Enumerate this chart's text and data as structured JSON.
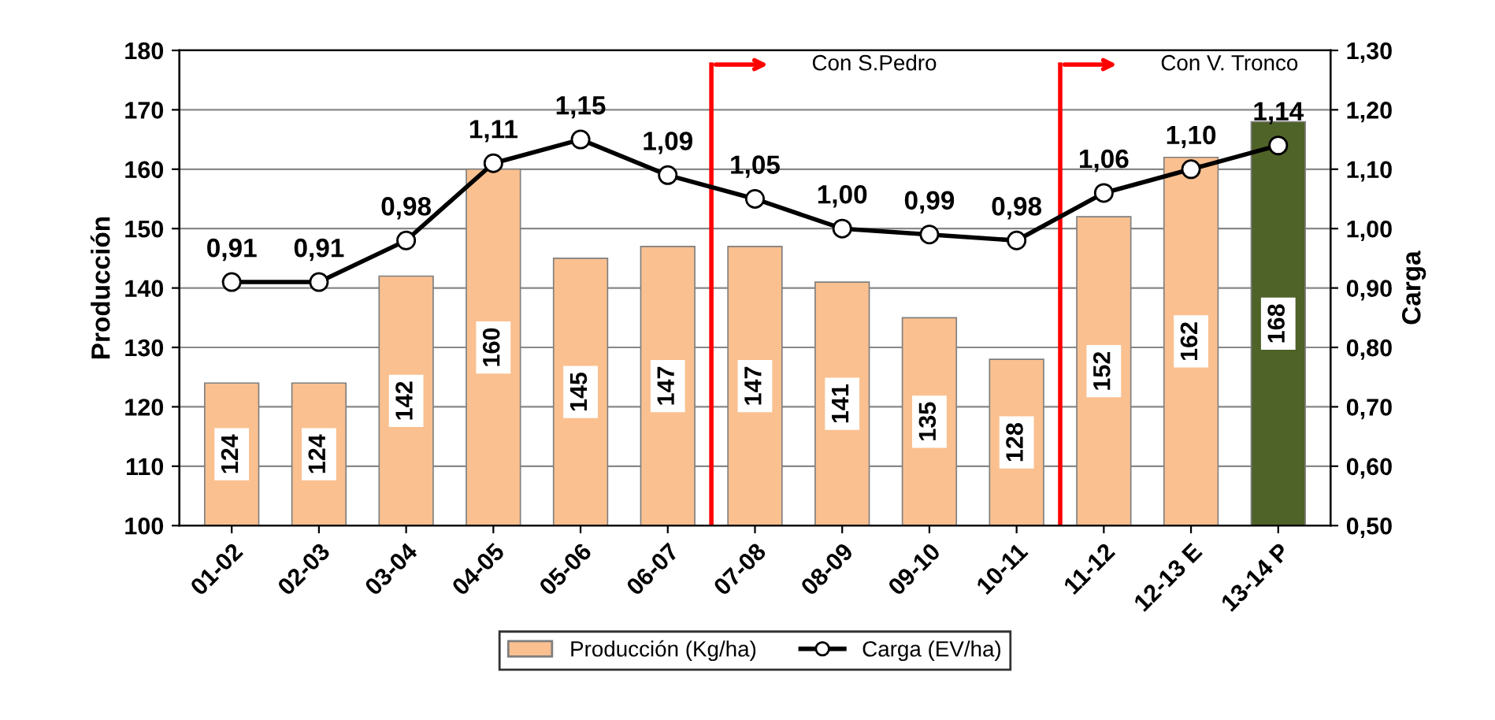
{
  "chart_data": {
    "type": "bar",
    "ylabel": "Producción",
    "y2label": "Carga",
    "categories": [
      "01-02",
      "02-03",
      "03-04",
      "04-05",
      "05-06",
      "06-07",
      "07-08",
      "08-09",
      "09-10",
      "10-11",
      "11-12",
      "12-13 E",
      "13-14 P"
    ],
    "series": [
      {
        "name": "Producción (Kg/ha)",
        "colors": [
          "#fac090",
          "#fac090",
          "#fac090",
          "#fac090",
          "#fac090",
          "#fac090",
          "#fac090",
          "#fac090",
          "#fac090",
          "#fac090",
          "#fac090",
          "#fac090",
          "#4f6228"
        ],
        "color": "#fac090",
        "values": [
          124,
          124,
          142,
          160,
          145,
          147,
          147,
          141,
          135,
          128,
          152,
          162,
          168
        ]
      },
      {
        "name": "Carga (EV/ha)",
        "type": "line",
        "axis": "y2",
        "color": "#000000",
        "marker": "circle",
        "values": [
          0.91,
          0.91,
          0.98,
          1.11,
          1.15,
          1.09,
          1.05,
          1.0,
          0.99,
          0.98,
          1.06,
          1.1,
          1.14
        ],
        "value_labels": [
          "0,91",
          "0,91",
          "0,98",
          "1,11",
          "1,15",
          "1,09",
          "1,05",
          "1,00",
          "0,99",
          "0,98",
          "1,06",
          "1,10",
          "1,14"
        ]
      }
    ],
    "data_labels": true,
    "ylim": [
      100,
      180
    ],
    "yticks": [
      100,
      110,
      120,
      130,
      140,
      150,
      160,
      170,
      180
    ],
    "y2lim": [
      0.5,
      1.3
    ],
    "y2ticks": [
      {
        "value": 0.5,
        "label": "0,50"
      },
      {
        "value": 0.6,
        "label": "0,60"
      },
      {
        "value": 0.7,
        "label": "0,70"
      },
      {
        "value": 0.8,
        "label": "0,80"
      },
      {
        "value": 0.9,
        "label": "0,90"
      },
      {
        "value": 1.0,
        "label": "1,00"
      },
      {
        "value": 1.1,
        "label": "1,10"
      },
      {
        "value": 1.2,
        "label": "1,20"
      },
      {
        "value": 1.3,
        "label": "1,30"
      }
    ],
    "annotations": [
      "Con S.Pedro",
      "Con V. Tronco"
    ],
    "grid": "y",
    "legend": "bottom"
  }
}
